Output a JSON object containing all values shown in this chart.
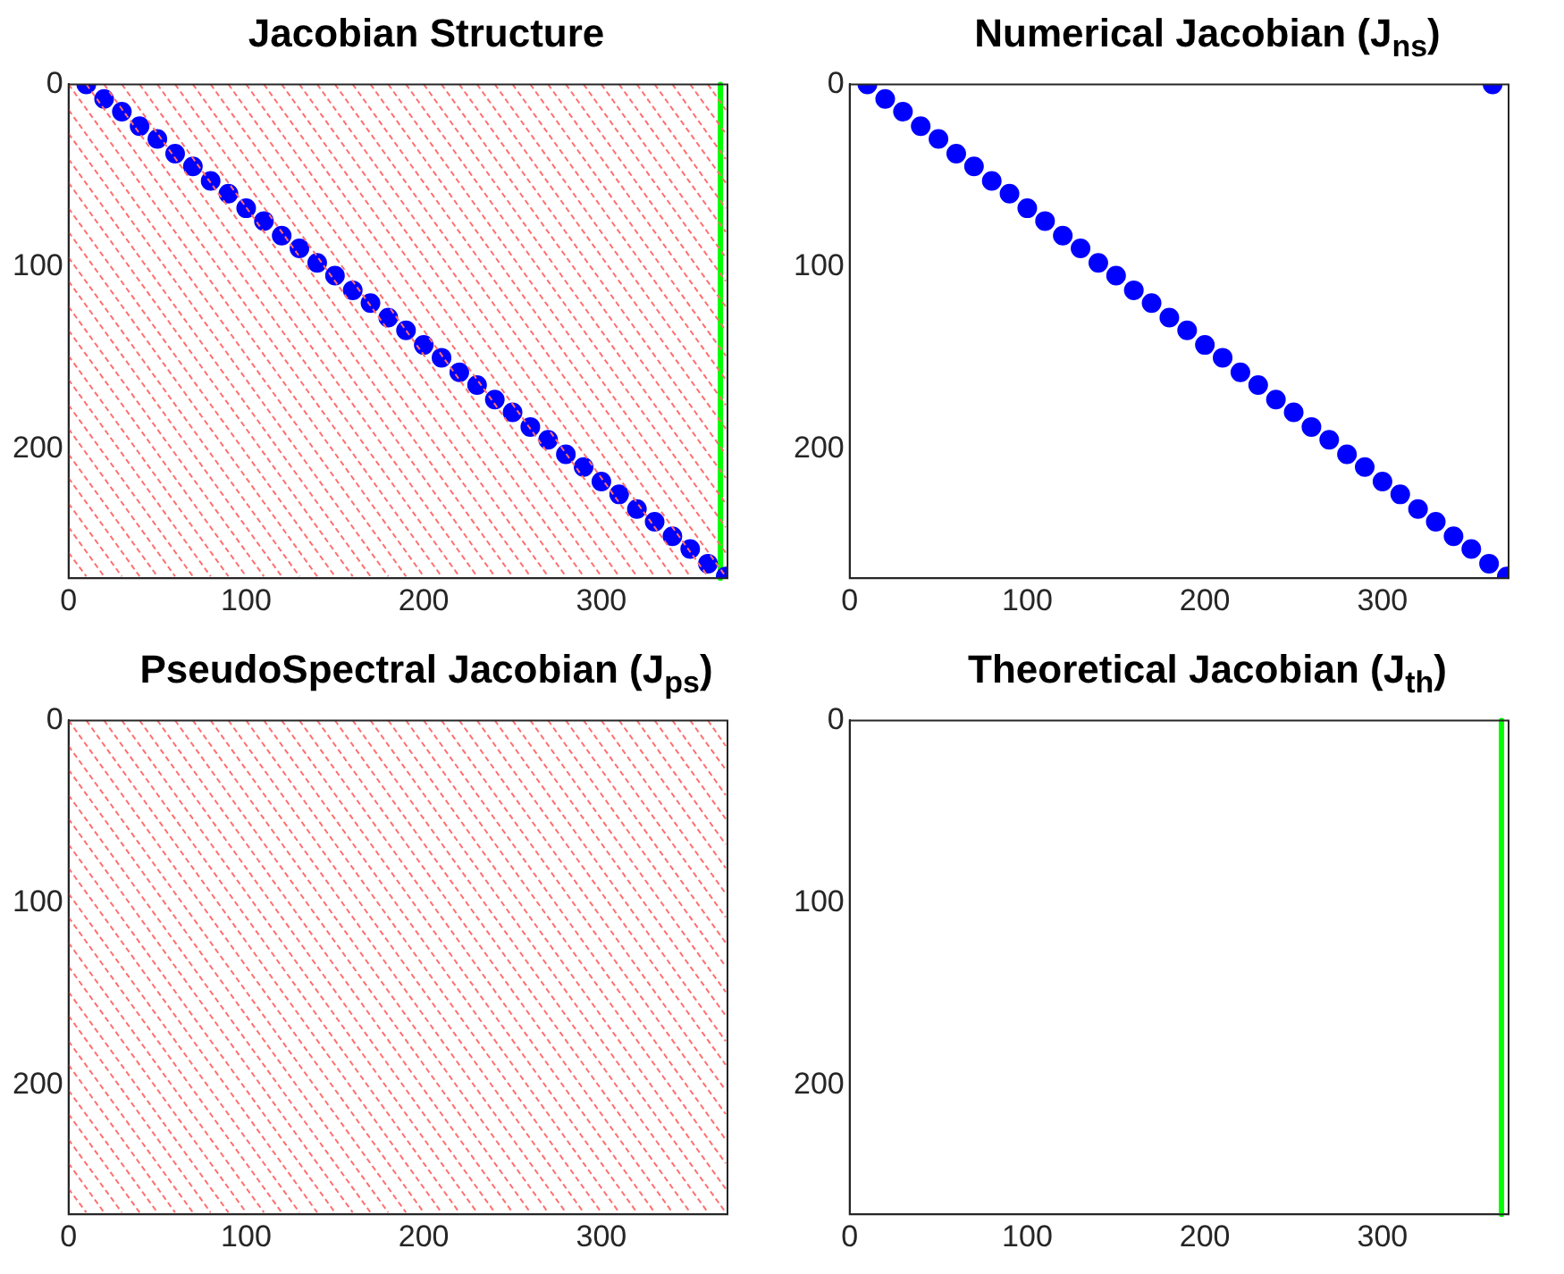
{
  "chart_data": [
    {
      "type": "scatter",
      "title": "Jacobian Structure",
      "xlim": [
        0,
        371
      ],
      "ylim": [
        271,
        0
      ],
      "xticks": [
        0,
        100,
        200,
        300
      ],
      "yticks": [
        0,
        100,
        200
      ],
      "grid": false,
      "series": [
        {
          "type": "line",
          "color": "#ff6f6f",
          "line_style": "dashed",
          "marker": "none",
          "x": [
            0,
            10,
            null,
            0,
            20,
            null,
            0,
            30,
            null,
            0,
            40,
            null,
            0,
            50,
            null,
            0,
            60,
            null,
            0,
            70,
            null,
            0,
            80,
            null,
            0,
            90,
            null,
            0,
            100,
            null,
            0,
            110,
            null,
            0,
            120,
            null,
            0,
            130,
            null,
            0,
            140,
            null,
            0,
            150,
            null,
            0,
            160,
            null,
            0,
            170,
            null,
            0,
            180,
            null,
            0,
            190,
            null,
            0,
            200,
            null,
            10,
            210,
            null,
            20,
            220,
            null,
            30,
            230,
            null,
            40,
            240,
            null,
            50,
            250,
            null,
            60,
            260,
            null,
            70,
            270,
            null,
            80,
            280,
            null,
            90,
            290,
            null,
            100,
            300,
            null,
            110,
            310,
            null,
            120,
            320,
            null,
            130,
            330,
            null,
            140,
            340,
            null,
            150,
            350,
            null,
            160,
            360,
            null,
            170,
            370,
            null,
            180,
            370,
            null,
            190,
            370,
            null,
            200,
            370,
            null,
            210,
            370,
            null,
            220,
            370,
            null,
            230,
            370,
            null,
            240,
            370,
            null,
            250,
            370,
            null,
            260,
            370,
            null,
            270,
            370,
            null,
            280,
            370,
            null,
            290,
            370,
            null,
            300,
            370,
            null,
            310,
            370,
            null,
            320,
            370,
            null,
            330,
            370,
            null,
            340,
            370,
            null,
            350,
            370,
            null,
            360,
            370
          ],
          "values": [
            257,
            270,
            null,
            243,
            270,
            null,
            230,
            270,
            null,
            216,
            270,
            null,
            203,
            270,
            null,
            189,
            270,
            null,
            176,
            270,
            null,
            162,
            270,
            null,
            149,
            270,
            null,
            135,
            270,
            null,
            122,
            270,
            null,
            108,
            270,
            null,
            95,
            270,
            null,
            81,
            270,
            null,
            68,
            270,
            null,
            54,
            270,
            null,
            41,
            270,
            null,
            27,
            270,
            null,
            14,
            270,
            null,
            0,
            270,
            null,
            0,
            270,
            null,
            0,
            270,
            null,
            0,
            270,
            null,
            0,
            270,
            null,
            0,
            270,
            null,
            0,
            270,
            null,
            0,
            270,
            null,
            0,
            270,
            null,
            0,
            270,
            null,
            0,
            270,
            null,
            0,
            270,
            null,
            0,
            270,
            null,
            0,
            270,
            null,
            0,
            270,
            null,
            0,
            270,
            null,
            0,
            270,
            null,
            0,
            270,
            null,
            0,
            257,
            null,
            0,
            243,
            null,
            0,
            230,
            null,
            0,
            216,
            null,
            0,
            203,
            null,
            0,
            189,
            null,
            0,
            176,
            null,
            0,
            162,
            null,
            0,
            149,
            null,
            0,
            135,
            null,
            0,
            122,
            null,
            0,
            108,
            null,
            0,
            95,
            null,
            0,
            81,
            null,
            0,
            68,
            null,
            0,
            54,
            null,
            0,
            41,
            null,
            0,
            27,
            null,
            0,
            14
          ]
        },
        {
          "type": "scatter",
          "color": "#0000ff",
          "marker": "circle",
          "x": [
            10,
            20,
            30,
            40,
            50,
            60,
            70,
            80,
            90,
            100,
            110,
            120,
            130,
            140,
            150,
            160,
            170,
            180,
            190,
            200,
            210,
            220,
            230,
            240,
            250,
            260,
            270,
            280,
            290,
            300,
            310,
            320,
            330,
            340,
            350,
            360,
            370
          ],
          "values": [
            0,
            8,
            15,
            23,
            30,
            38,
            45,
            53,
            60,
            68,
            75,
            83,
            90,
            98,
            105,
            113,
            120,
            128,
            135,
            143,
            150,
            158,
            165,
            173,
            180,
            188,
            195,
            203,
            210,
            218,
            225,
            233,
            240,
            248,
            255,
            263,
            270
          ]
        },
        {
          "type": "line",
          "color": "#00ff00",
          "line_style": "solid",
          "marker": "none",
          "x": [
            367,
            367
          ],
          "values": [
            0,
            271
          ]
        }
      ]
    },
    {
      "type": "scatter",
      "title": "Numerical Jacobian (J$_{ns}$)",
      "xlim": [
        0,
        371
      ],
      "ylim": [
        271,
        0
      ],
      "xticks": [
        0,
        100,
        200,
        300
      ],
      "yticks": [
        0,
        100,
        200
      ],
      "grid": false,
      "series": [
        {
          "type": "scatter",
          "color": "#0000ff",
          "marker": "circle",
          "x": [
            10,
            20,
            30,
            40,
            50,
            60,
            70,
            80,
            90,
            100,
            110,
            120,
            130,
            140,
            150,
            160,
            170,
            180,
            190,
            200,
            210,
            220,
            230,
            240,
            250,
            260,
            270,
            280,
            290,
            300,
            310,
            320,
            330,
            340,
            350,
            360,
            370,
            362
          ],
          "values": [
            0,
            8,
            15,
            23,
            30,
            38,
            45,
            53,
            60,
            68,
            75,
            83,
            90,
            98,
            105,
            113,
            120,
            128,
            135,
            143,
            150,
            158,
            165,
            173,
            180,
            188,
            195,
            203,
            210,
            218,
            225,
            233,
            240,
            248,
            255,
            263,
            270,
            0
          ]
        }
      ]
    },
    {
      "type": "scatter",
      "title": "PseudoSpectral Jacobian (J$_{ps}$)",
      "xlim": [
        0,
        371
      ],
      "ylim": [
        271,
        0
      ],
      "xticks": [
        0,
        100,
        200,
        300
      ],
      "yticks": [
        0,
        100,
        200
      ],
      "grid": false,
      "series": [
        {
          "type": "line",
          "color": "#ff6f6f",
          "line_style": "dashed",
          "marker": "none",
          "x": [
            0,
            10,
            null,
            0,
            20,
            null,
            0,
            30,
            null,
            0,
            40,
            null,
            0,
            50,
            null,
            0,
            60,
            null,
            0,
            70,
            null,
            0,
            80,
            null,
            0,
            90,
            null,
            0,
            100,
            null,
            0,
            110,
            null,
            0,
            120,
            null,
            0,
            130,
            null,
            0,
            140,
            null,
            0,
            150,
            null,
            0,
            160,
            null,
            0,
            170,
            null,
            0,
            180,
            null,
            0,
            190,
            null,
            0,
            200,
            null,
            10,
            210,
            null,
            20,
            220,
            null,
            30,
            230,
            null,
            40,
            240,
            null,
            50,
            250,
            null,
            60,
            260,
            null,
            70,
            270,
            null,
            80,
            280,
            null,
            90,
            290,
            null,
            100,
            300,
            null,
            110,
            310,
            null,
            120,
            320,
            null,
            130,
            330,
            null,
            140,
            340,
            null,
            150,
            350,
            null,
            160,
            360,
            null,
            170,
            370,
            null,
            180,
            370,
            null,
            190,
            370,
            null,
            200,
            370,
            null,
            210,
            370,
            null,
            220,
            370,
            null,
            230,
            370,
            null,
            240,
            370,
            null,
            250,
            370,
            null,
            260,
            370,
            null,
            270,
            370,
            null,
            280,
            370,
            null,
            290,
            370,
            null,
            300,
            370,
            null,
            310,
            370,
            null,
            320,
            370,
            null,
            330,
            370,
            null,
            340,
            370,
            null,
            350,
            370,
            null,
            360,
            370
          ],
          "values": [
            257,
            270,
            null,
            243,
            270,
            null,
            230,
            270,
            null,
            216,
            270,
            null,
            203,
            270,
            null,
            189,
            270,
            null,
            176,
            270,
            null,
            162,
            270,
            null,
            149,
            270,
            null,
            135,
            270,
            null,
            122,
            270,
            null,
            108,
            270,
            null,
            95,
            270,
            null,
            81,
            270,
            null,
            68,
            270,
            null,
            54,
            270,
            null,
            41,
            270,
            null,
            27,
            270,
            null,
            14,
            270,
            null,
            0,
            270,
            null,
            0,
            270,
            null,
            0,
            270,
            null,
            0,
            270,
            null,
            0,
            270,
            null,
            0,
            270,
            null,
            0,
            270,
            null,
            0,
            270,
            null,
            0,
            270,
            null,
            0,
            270,
            null,
            0,
            270,
            null,
            0,
            270,
            null,
            0,
            270,
            null,
            0,
            270,
            null,
            0,
            270,
            null,
            0,
            270,
            null,
            0,
            270,
            null,
            0,
            270,
            null,
            0,
            257,
            null,
            0,
            243,
            null,
            0,
            230,
            null,
            0,
            216,
            null,
            0,
            203,
            null,
            0,
            189,
            null,
            0,
            176,
            null,
            0,
            162,
            null,
            0,
            149,
            null,
            0,
            135,
            null,
            0,
            122,
            null,
            0,
            108,
            null,
            0,
            95,
            null,
            0,
            81,
            null,
            0,
            68,
            null,
            0,
            54,
            null,
            0,
            41,
            null,
            0,
            27,
            null,
            0,
            14
          ]
        }
      ]
    },
    {
      "type": "scatter",
      "title": "Theoretical Jacobian (J$_{th}$)",
      "xlim": [
        0,
        371
      ],
      "ylim": [
        271,
        0
      ],
      "xticks": [
        0,
        100,
        200,
        300
      ],
      "yticks": [
        0,
        100,
        200
      ],
      "grid": false,
      "series": [
        {
          "type": "line",
          "color": "#00ff00",
          "line_style": "solid",
          "marker": "none",
          "x": [
            367,
            367
          ],
          "values": [
            0,
            271
          ]
        }
      ]
    }
  ]
}
